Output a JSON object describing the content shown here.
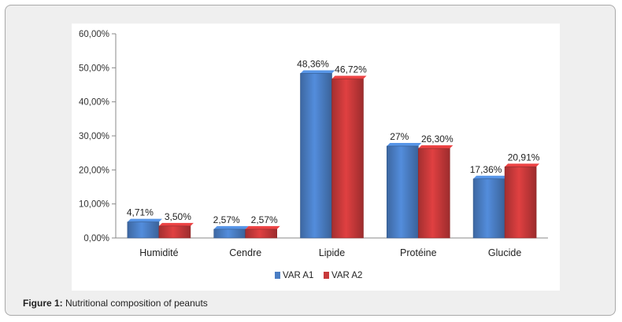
{
  "caption": {
    "label": "Figure 1:",
    "text": "Nutritional composition of peanuts"
  },
  "chart_data": {
    "type": "bar",
    "categories": [
      "Humidité",
      "Cendre",
      "Lipide",
      "Protéine",
      "Glucide"
    ],
    "series": [
      {
        "name": "VAR A1",
        "color": "#4a7ec4",
        "values": [
          4.71,
          2.57,
          48.36,
          27.0,
          17.36
        ],
        "labels": [
          "4,71%",
          "2,57%",
          "48,36%",
          "27%",
          "17,36%"
        ]
      },
      {
        "name": "VAR A2",
        "color": "#c8393a",
        "values": [
          3.5,
          2.57,
          46.72,
          26.3,
          20.91
        ],
        "labels": [
          "3,50%",
          "2,57%",
          "46,72%",
          "26,30%",
          "20,91%"
        ]
      }
    ],
    "ylim": [
      0,
      60
    ],
    "yticks": [
      "0,00%",
      "10,00%",
      "20,00%",
      "30,00%",
      "40,00%",
      "50,00%",
      "60,00%"
    ],
    "grid": false,
    "legend_position": "bottom"
  }
}
